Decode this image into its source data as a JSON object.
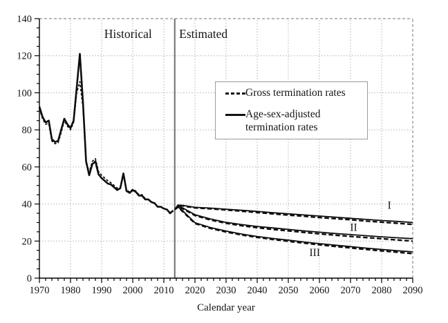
{
  "chart_data": {
    "type": "line",
    "xlabel": "Calendar year",
    "ylabel": "",
    "xlim": [
      1970,
      2090
    ],
    "ylim": [
      0,
      140
    ],
    "x_tick_step": 10,
    "x_minor_step": 2,
    "y_tick_step": 20,
    "y_minor_step": 5,
    "grid": "dotted",
    "legend_position": "upper-middle",
    "divider_year": 2013.5,
    "colors": {
      "line": "#0d0d0d",
      "grid": "#b0b0b0",
      "frame": "#8c8c8c",
      "divider": "#6e6e6e",
      "axis": "#000000",
      "text": "#141414",
      "background": "#ffffff"
    },
    "region_labels": [
      {
        "text": "Historical",
        "year": 1998.5,
        "value": 129.5
      },
      {
        "text": "Estimated",
        "year": 2022.7,
        "value": 129.5
      }
    ],
    "scenario_labels": [
      {
        "text": "I",
        "year": 2082.5,
        "value": 37.5
      },
      {
        "text": "II",
        "year": 2071.0,
        "value": 25.5
      },
      {
        "text": "III",
        "year": 2058.5,
        "value": 12.0
      }
    ],
    "legend": {
      "items": [
        {
          "label": "Gross termination rates",
          "style": "dashed"
        },
        {
          "label": "Age-sex-adjusted termination rates",
          "style": "solid"
        }
      ]
    },
    "series": [
      {
        "id": "historical-gross",
        "group": "historical",
        "kind": "gross",
        "style": "dashed",
        "width": 1.7,
        "dash": "3.5 2.5",
        "x": [
          1970,
          1971,
          1972,
          1973,
          1974,
          1975,
          1976,
          1977,
          1978,
          1979,
          1980,
          1981,
          1982,
          1983,
          1984,
          1985,
          1986,
          1987,
          1988,
          1989,
          1990,
          1991,
          1992,
          1993,
          1994,
          1995,
          1996,
          1997,
          1998,
          1999,
          2000,
          2001,
          2002,
          2003,
          2004,
          2005,
          2006,
          2007,
          2008,
          2009,
          2010,
          2011,
          2012,
          2013
        ],
        "y": [
          91.5,
          86,
          83,
          83.5,
          74,
          72.5,
          73,
          78.5,
          85,
          82,
          80,
          84,
          100,
          106,
          92,
          63.5,
          57,
          63,
          64.5,
          57.5,
          55.5,
          54,
          52.5,
          51.5,
          50,
          48.5,
          49,
          56.5,
          47.5,
          46.5,
          48,
          47,
          45,
          45,
          43,
          42.5,
          41,
          40.5,
          38.5,
          38.5,
          37.5,
          37,
          35,
          36.5
        ]
      },
      {
        "id": "historical-adjusted",
        "group": "historical",
        "kind": "adjusted",
        "style": "solid",
        "width": 2.6,
        "dash": "",
        "x": [
          1970,
          1971,
          1972,
          1973,
          1974,
          1975,
          1976,
          1977,
          1978,
          1979,
          1980,
          1981,
          1982,
          1983,
          1984,
          1985,
          1986,
          1987,
          1988,
          1989,
          1990,
          1991,
          1992,
          1993,
          1994,
          1995,
          1996,
          1997,
          1998,
          1999,
          2000,
          2001,
          2002,
          2003,
          2004,
          2005,
          2006,
          2007,
          2008,
          2009,
          2010,
          2011,
          2012,
          2013
        ],
        "y": [
          92.5,
          87,
          84,
          85,
          75,
          73.5,
          74,
          80,
          86,
          83,
          81,
          85,
          103,
          121,
          95,
          63,
          55.5,
          61.5,
          63,
          56,
          54,
          52.5,
          51,
          50.5,
          49,
          47.5,
          48.5,
          56.5,
          47,
          46,
          47.5,
          46.5,
          44.5,
          44.5,
          42.5,
          42.5,
          41,
          40.5,
          38.5,
          38.5,
          37.5,
          37,
          35,
          36.5
        ]
      },
      {
        "id": "scenario-I-gross",
        "group": "I",
        "kind": "gross",
        "style": "dashed",
        "width": 2.4,
        "dash": "6.5 3.5",
        "x": [
          2013.5,
          2014.5,
          2016,
          2020,
          2025,
          2030,
          2035,
          2040,
          2045,
          2050,
          2055,
          2060,
          2065,
          2070,
          2075,
          2080,
          2085,
          2090
        ],
        "y": [
          37,
          39.1,
          39,
          37.9,
          37.4,
          36.8,
          36.1,
          35.4,
          34.7,
          34,
          33.4,
          32.7,
          32.1,
          31.5,
          30.8,
          30.2,
          29.6,
          29
        ]
      },
      {
        "id": "scenario-I-adjusted",
        "group": "I",
        "kind": "adjusted",
        "style": "solid",
        "width": 1.8,
        "dash": "",
        "x": [
          2013.5,
          2014.5,
          2016,
          2020,
          2025,
          2030,
          2035,
          2040,
          2045,
          2050,
          2055,
          2060,
          2065,
          2070,
          2075,
          2080,
          2085,
          2090
        ],
        "y": [
          37,
          39.4,
          39.3,
          38.2,
          37.8,
          37.2,
          36.6,
          36,
          35.3,
          34.7,
          34.1,
          33.5,
          32.9,
          32.3,
          31.7,
          31.1,
          30.6,
          30
        ]
      },
      {
        "id": "scenario-II-gross",
        "group": "II",
        "kind": "gross",
        "style": "dashed",
        "width": 2.4,
        "dash": "6.5 3.5",
        "x": [
          2013.5,
          2014.5,
          2016,
          2020,
          2025,
          2030,
          2035,
          2040,
          2045,
          2050,
          2055,
          2060,
          2065,
          2070,
          2075,
          2080,
          2085,
          2090
        ],
        "y": [
          37,
          38.7,
          37.5,
          33.8,
          31.4,
          29.6,
          28.3,
          27.2,
          26.3,
          25.5,
          24.7,
          23.9,
          23.2,
          22.5,
          21.9,
          21.3,
          20.6,
          20
        ]
      },
      {
        "id": "scenario-II-adjusted",
        "group": "II",
        "kind": "adjusted",
        "style": "solid",
        "width": 1.8,
        "dash": "",
        "x": [
          2013.5,
          2014.5,
          2016,
          2020,
          2025,
          2030,
          2035,
          2040,
          2045,
          2050,
          2055,
          2060,
          2065,
          2070,
          2075,
          2080,
          2085,
          2090
        ],
        "y": [
          37,
          39,
          37.9,
          34.2,
          31.9,
          30.1,
          28.9,
          27.9,
          27.1,
          26.3,
          25.5,
          24.8,
          24.1,
          23.5,
          22.9,
          22.3,
          21.8,
          21.3
        ]
      },
      {
        "id": "scenario-III-gross",
        "group": "III",
        "kind": "gross",
        "style": "dashed",
        "width": 2.4,
        "dash": "6.5 3.5",
        "x": [
          2013.5,
          2014.5,
          2016,
          2020,
          2025,
          2030,
          2035,
          2040,
          2045,
          2050,
          2055,
          2060,
          2065,
          2070,
          2075,
          2080,
          2085,
          2090
        ],
        "y": [
          37,
          38.2,
          36,
          29.5,
          26.8,
          24.9,
          23.3,
          22,
          20.9,
          19.9,
          18.9,
          18,
          17.1,
          16.3,
          15.5,
          14.7,
          14,
          13.2
        ]
      },
      {
        "id": "scenario-III-adjusted",
        "group": "III",
        "kind": "adjusted",
        "style": "solid",
        "width": 1.8,
        "dash": "",
        "x": [
          2013.5,
          2014.5,
          2016,
          2020,
          2025,
          2030,
          2035,
          2040,
          2045,
          2050,
          2055,
          2060,
          2065,
          2070,
          2075,
          2080,
          2085,
          2090
        ],
        "y": [
          37,
          38.5,
          36.4,
          29.9,
          27.3,
          25.4,
          23.8,
          22.5,
          21.4,
          20.5,
          19.5,
          18.6,
          17.8,
          17,
          16.2,
          15.5,
          14.8,
          14.2
        ]
      }
    ]
  }
}
